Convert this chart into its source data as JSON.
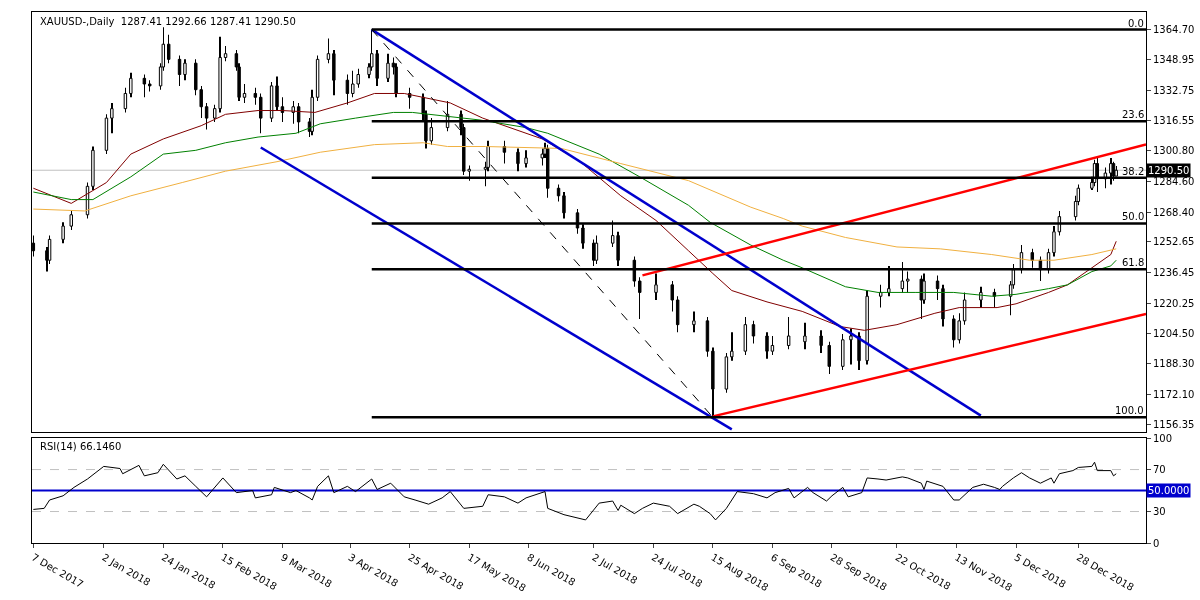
{
  "chart_data": [
    {
      "type": "candlestick",
      "title": "XAUUSD-,Daily  1287.41 1292.66 1287.41 1290.50",
      "color": "#000000",
      "x": [
        "2017-12-07",
        "2017-12-12",
        "2017-12-13",
        "2017-12-18",
        "2017-12-21",
        "2017-12-27",
        "2017-12-29",
        "2018-01-03",
        "2018-01-05",
        "2018-01-10",
        "2018-01-12",
        "2018-01-17",
        "2018-01-19",
        "2018-01-23",
        "2018-01-24",
        "2018-01-26",
        "2018-01-30",
        "2018-02-01",
        "2018-02-05",
        "2018-02-07",
        "2018-02-09",
        "2018-02-12",
        "2018-02-14",
        "2018-02-16",
        "2018-02-20",
        "2018-02-21",
        "2018-02-23",
        "2018-02-27",
        "2018-03-01",
        "2018-03-05",
        "2018-03-07",
        "2018-03-09",
        "2018-03-13",
        "2018-03-15",
        "2018-03-19",
        "2018-03-20",
        "2018-03-22",
        "2018-03-26",
        "2018-03-28",
        "2018-04-02",
        "2018-04-04",
        "2018-04-06",
        "2018-04-10",
        "2018-04-11",
        "2018-04-13",
        "2018-04-17",
        "2018-04-19",
        "2018-04-20",
        "2018-04-25",
        "2018-04-30",
        "2018-05-01",
        "2018-05-03",
        "2018-05-09",
        "2018-05-14",
        "2018-05-15",
        "2018-05-17",
        "2018-05-23",
        "2018-05-24",
        "2018-05-30",
        "2018-06-04",
        "2018-06-07",
        "2018-06-13",
        "2018-06-14",
        "2018-06-15",
        "2018-06-19",
        "2018-06-21",
        "2018-06-26",
        "2018-06-28",
        "2018-07-02",
        "2018-07-03",
        "2018-07-09",
        "2018-07-11",
        "2018-07-17",
        "2018-07-19",
        "2018-07-25",
        "2018-07-31",
        "2018-08-02",
        "2018-08-08",
        "2018-08-13",
        "2018-08-15",
        "2018-08-20",
        "2018-08-22",
        "2018-08-27",
        "2018-08-30",
        "2018-09-04",
        "2018-09-06",
        "2018-09-12",
        "2018-09-18",
        "2018-09-24",
        "2018-09-27",
        "2018-10-02",
        "2018-10-05",
        "2018-10-08",
        "2018-10-11",
        "2018-10-16",
        "2018-10-19",
        "2018-10-24",
        "2018-10-26",
        "2018-10-31",
        "2018-11-01",
        "2018-11-06",
        "2018-11-08",
        "2018-11-12",
        "2018-11-14",
        "2018-11-16",
        "2018-11-22",
        "2018-11-27",
        "2018-12-03",
        "2018-12-04",
        "2018-12-07",
        "2018-12-11",
        "2018-12-14",
        "2018-12-17",
        "2018-12-19",
        "2018-12-21",
        "2018-12-27",
        "2018-12-28",
        "2019-01-02",
        "2019-01-03",
        "2019-01-04",
        "2019-01-07",
        "2019-01-09",
        "2019-01-10",
        "2019-01-11"
      ],
      "ohlc": [
        [
          1252,
          1256,
          1245,
          1248
        ],
        [
          1248,
          1250,
          1237,
          1243
        ],
        [
          1243,
          1256,
          1241,
          1254
        ],
        [
          1254,
          1263,
          1252,
          1261
        ],
        [
          1261,
          1269,
          1259,
          1267
        ],
        [
          1267,
          1284,
          1265,
          1282
        ],
        [
          1282,
          1303,
          1280,
          1301
        ],
        [
          1301,
          1320,
          1299,
          1318
        ],
        [
          1318,
          1326,
          1310,
          1323
        ],
        [
          1323,
          1334,
          1321,
          1331
        ],
        [
          1331,
          1342,
          1329,
          1339
        ],
        [
          1339,
          1341,
          1329,
          1336
        ],
        [
          1336,
          1338,
          1332,
          1335
        ],
        [
          1335,
          1347,
          1333,
          1345
        ],
        [
          1345,
          1366,
          1343,
          1357
        ],
        [
          1357,
          1362,
          1347,
          1349
        ],
        [
          1349,
          1351,
          1335,
          1341
        ],
        [
          1341,
          1349,
          1338,
          1347
        ],
        [
          1347,
          1349,
          1330,
          1333
        ],
        [
          1333,
          1335,
          1318,
          1324
        ],
        [
          1324,
          1326,
          1312,
          1318
        ],
        [
          1318,
          1325,
          1316,
          1323
        ],
        [
          1323,
          1361,
          1321,
          1350
        ],
        [
          1350,
          1356,
          1348,
          1352
        ],
        [
          1352,
          1354,
          1343,
          1345
        ],
        [
          1345,
          1347,
          1327,
          1329
        ],
        [
          1329,
          1336,
          1326,
          1331
        ],
        [
          1331,
          1334,
          1325,
          1329
        ],
        [
          1329,
          1331,
          1310,
          1318
        ],
        [
          1318,
          1337,
          1316,
          1335
        ],
        [
          1335,
          1340,
          1322,
          1324
        ],
        [
          1324,
          1329,
          1316,
          1321
        ],
        [
          1321,
          1327,
          1315,
          1324
        ],
        [
          1324,
          1326,
          1310,
          1316
        ],
        [
          1316,
          1318,
          1308,
          1311
        ],
        [
          1311,
          1333,
          1309,
          1329
        ],
        [
          1329,
          1351,
          1327,
          1349
        ],
        [
          1349,
          1360,
          1347,
          1352
        ],
        [
          1352,
          1354,
          1330,
          1338
        ],
        [
          1338,
          1341,
          1325,
          1331
        ],
        [
          1331,
          1343,
          1329,
          1336
        ],
        [
          1336,
          1344,
          1334,
          1341
        ],
        [
          1341,
          1347,
          1339,
          1345
        ],
        [
          1345,
          1364.7,
          1343,
          1352
        ],
        [
          1352,
          1354,
          1335,
          1339
        ],
        [
          1339,
          1352,
          1337,
          1347
        ],
        [
          1347,
          1350,
          1341,
          1345
        ],
        [
          1345,
          1347,
          1329,
          1331
        ],
        [
          1331,
          1334,
          1323,
          1329
        ],
        [
          1329,
          1331,
          1316,
          1320
        ],
        [
          1320,
          1322,
          1302,
          1306
        ],
        [
          1306,
          1318,
          1304,
          1313
        ],
        [
          1313,
          1327,
          1311,
          1320
        ],
        [
          1320,
          1322,
          1309,
          1313
        ],
        [
          1313,
          1315,
          1288,
          1290
        ],
        [
          1290,
          1293,
          1285,
          1291
        ],
        [
          1291,
          1295,
          1282,
          1292
        ],
        [
          1292,
          1306,
          1290,
          1303
        ],
        [
          1303,
          1306,
          1294,
          1300
        ],
        [
          1300,
          1302,
          1290,
          1294
        ],
        [
          1294,
          1301,
          1292,
          1297
        ],
        [
          1297,
          1302,
          1293,
          1299
        ],
        [
          1299,
          1305,
          1297,
          1302
        ],
        [
          1302,
          1304,
          1276,
          1281
        ],
        [
          1281,
          1283,
          1274,
          1277
        ],
        [
          1277,
          1279,
          1265,
          1268
        ],
        [
          1268,
          1270,
          1257,
          1260
        ],
        [
          1260,
          1262,
          1249,
          1252
        ],
        [
          1252,
          1254,
          1240,
          1243
        ],
        [
          1243,
          1256,
          1241,
          1252
        ],
        [
          1252,
          1264,
          1250,
          1256
        ],
        [
          1256,
          1258,
          1240,
          1243
        ],
        [
          1243,
          1245,
          1229,
          1232
        ],
        [
          1232,
          1234,
          1212,
          1226
        ],
        [
          1226,
          1236,
          1222,
          1230
        ],
        [
          1230,
          1232,
          1216,
          1222
        ],
        [
          1222,
          1224,
          1205,
          1209
        ],
        [
          1209,
          1216,
          1205,
          1211
        ],
        [
          1211,
          1213,
          1192,
          1195
        ],
        [
          1195,
          1197,
          1160.6,
          1175
        ],
        [
          1175,
          1194,
          1173,
          1192
        ],
        [
          1192,
          1205,
          1190,
          1195
        ],
        [
          1195,
          1213,
          1193,
          1209
        ],
        [
          1209,
          1211,
          1199,
          1203
        ],
        [
          1203,
          1205,
          1191,
          1195
        ],
        [
          1195,
          1203,
          1193,
          1198
        ],
        [
          1198,
          1213,
          1196,
          1203
        ],
        [
          1200,
          1210,
          1196,
          1203
        ],
        [
          1203,
          1206,
          1194,
          1198
        ],
        [
          1198,
          1200,
          1183,
          1187
        ],
        [
          1187,
          1204,
          1185,
          1201
        ],
        [
          1201,
          1207,
          1188,
          1203
        ],
        [
          1203,
          1205,
          1185,
          1190
        ],
        [
          1190,
          1227,
          1188,
          1224
        ],
        [
          1224,
          1230,
          1218,
          1226
        ],
        [
          1226,
          1240,
          1224,
          1228
        ],
        [
          1228,
          1242,
          1226,
          1232
        ],
        [
          1232,
          1237,
          1226,
          1233
        ],
        [
          1233,
          1235,
          1212,
          1222
        ],
        [
          1222,
          1236,
          1220,
          1232
        ],
        [
          1232,
          1235,
          1222,
          1228
        ],
        [
          1228,
          1230,
          1208,
          1212
        ],
        [
          1212,
          1214,
          1197,
          1201
        ],
        [
          1201,
          1215,
          1199,
          1211
        ],
        [
          1211,
          1226,
          1209,
          1222
        ],
        [
          1222,
          1229,
          1218,
          1226
        ],
        [
          1226,
          1228,
          1218,
          1224
        ],
        [
          1224,
          1232,
          1214,
          1230
        ],
        [
          1230,
          1241,
          1228,
          1238
        ],
        [
          1238,
          1251,
          1236,
          1247
        ],
        [
          1247,
          1249,
          1239,
          1243
        ],
        [
          1243,
          1245,
          1232,
          1238
        ],
        [
          1238,
          1249,
          1236,
          1247
        ],
        [
          1247,
          1261,
          1245,
          1258
        ],
        [
          1258,
          1269,
          1256,
          1266
        ],
        [
          1266,
          1277,
          1264,
          1274
        ],
        [
          1274,
          1283,
          1272,
          1281
        ],
        [
          1281,
          1287,
          1280,
          1284
        ],
        [
          1284,
          1296,
          1282,
          1294
        ],
        [
          1294,
          1298,
          1279,
          1286
        ],
        [
          1286,
          1292,
          1281,
          1289
        ],
        [
          1289,
          1297,
          1283,
          1294
        ],
        [
          1294,
          1295,
          1285,
          1287.41
        ],
        [
          1287.41,
          1292.66,
          1287.41,
          1290.5
        ]
      ],
      "series": [
        {
          "type": "line",
          "color": "#800000",
          "x": [
            "2017-12-07",
            "2017-12-21",
            "2018-01-03",
            "2018-01-12",
            "2018-01-24",
            "2018-02-07",
            "2018-02-16",
            "2018-02-28",
            "2018-03-09",
            "2018-03-21",
            "2018-04-02",
            "2018-04-12",
            "2018-04-23",
            "2018-05-10",
            "2018-05-22",
            "2018-06-13",
            "2018-06-27",
            "2018-07-12",
            "2018-07-25",
            "2018-08-06",
            "2018-08-15",
            "2018-08-22",
            "2018-09-04",
            "2018-09-17",
            "2018-10-01",
            "2018-10-10",
            "2018-10-22",
            "2018-11-05",
            "2018-11-14",
            "2018-11-28",
            "2018-12-05",
            "2018-12-17",
            "2018-12-24",
            "2019-01-02",
            "2019-01-09",
            "2019-01-11"
          ],
          "values": [
            1281,
            1273,
            1284,
            1299,
            1307,
            1314,
            1320,
            1322,
            1322,
            1321,
            1326,
            1331,
            1331,
            1326,
            1318,
            1307,
            1295,
            1277,
            1264,
            1248,
            1236,
            1227,
            1221,
            1216,
            1208,
            1206,
            1209,
            1215,
            1218,
            1218,
            1220,
            1226,
            1230,
            1239,
            1246,
            1253
          ]
        },
        {
          "type": "line",
          "color": "#008000",
          "x": [
            "2017-12-07",
            "2017-12-21",
            "2017-12-29",
            "2018-01-12",
            "2018-01-24",
            "2018-02-05",
            "2018-02-16",
            "2018-02-28",
            "2018-03-14",
            "2018-03-23",
            "2018-04-05",
            "2018-04-19",
            "2018-04-26",
            "2018-05-21",
            "2018-06-07",
            "2018-06-15",
            "2018-07-04",
            "2018-07-19",
            "2018-08-06",
            "2018-08-14",
            "2018-08-29",
            "2018-09-10",
            "2018-09-17",
            "2018-10-03",
            "2018-10-15",
            "2018-10-29",
            "2018-11-12",
            "2018-11-26",
            "2018-12-05",
            "2018-12-17",
            "2018-12-24",
            "2019-01-02",
            "2019-01-09",
            "2019-01-11"
          ],
          "values": [
            1279,
            1275,
            1275,
            1287,
            1299,
            1301,
            1305,
            1308,
            1310,
            1315,
            1318,
            1321,
            1321,
            1317,
            1313,
            1310,
            1299,
            1287,
            1272,
            1263,
            1251,
            1243,
            1239,
            1229,
            1226,
            1226,
            1226,
            1224,
            1225,
            1228,
            1230,
            1237,
            1240,
            1243
          ]
        },
        {
          "type": "line",
          "color": "#f0b040",
          "x": [
            "2017-12-07",
            "2017-12-26",
            "2018-01-12",
            "2018-01-31",
            "2018-02-16",
            "2018-03-07",
            "2018-03-23",
            "2018-04-12",
            "2018-04-30",
            "2018-05-09",
            "2018-05-23",
            "2018-06-20",
            "2018-07-12",
            "2018-08-06",
            "2018-08-29",
            "2018-09-10",
            "2018-09-17",
            "2018-10-03",
            "2018-10-22",
            "2018-11-07",
            "2018-11-26",
            "2018-12-10",
            "2018-12-19",
            "2019-01-02",
            "2019-01-11"
          ],
          "values": [
            1270,
            1269,
            1277,
            1284,
            1290,
            1295,
            1300,
            1304,
            1305,
            1303,
            1303,
            1302,
            1294,
            1285,
            1271,
            1265,
            1261,
            1255,
            1250,
            1249,
            1246,
            1243,
            1243,
            1246,
            1249
          ]
        },
        {
          "type": "line",
          "color": "#0000cd",
          "x": [
            "2018-04-11",
            "2018-11-22"
          ],
          "values": [
            1364.7,
            1161
          ]
        },
        {
          "type": "line",
          "color": "#0000cd",
          "x": [
            "2018-03-01",
            "2018-08-22"
          ],
          "values": [
            1302.5,
            1153.7
          ]
        },
        {
          "type": "line",
          "color": "#ff0000",
          "x": [
            "2018-07-20",
            "2019-01-22"
          ],
          "values": [
            1235,
            1304.1
          ]
        },
        {
          "type": "line",
          "color": "#ff0000",
          "x": [
            "2018-08-15",
            "2019-01-22"
          ],
          "values": [
            1160.6,
            1214.6
          ]
        },
        {
          "type": "line",
          "color": "#000000",
          "line_style": "dashed",
          "x": [
            "2018-04-11",
            "2018-08-15"
          ],
          "values": [
            1364.7,
            1160.1
          ]
        },
        {
          "type": "line",
          "name": "0.0",
          "color": "#000000",
          "x": [
            "2018-04-11",
            "2019-01-22"
          ],
          "values": [
            1364.7,
            1364.7
          ]
        },
        {
          "type": "line",
          "name": "23.6",
          "color": "#000000",
          "x": [
            "2018-04-11",
            "2019-01-22"
          ],
          "values": [
            1316.4,
            1316.4
          ]
        },
        {
          "type": "line",
          "name": "38.2",
          "color": "#000000",
          "x": [
            "2018-04-11",
            "2019-01-22"
          ],
          "values": [
            1286.5,
            1286.5
          ]
        },
        {
          "type": "line",
          "name": "50.0",
          "color": "#000000",
          "x": [
            "2018-04-11",
            "2019-01-22"
          ],
          "values": [
            1262.4,
            1262.4
          ]
        },
        {
          "type": "line",
          "name": "61.8",
          "color": "#000000",
          "x": [
            "2018-04-11",
            "2019-01-22"
          ],
          "values": [
            1238.3,
            1238.3
          ]
        },
        {
          "type": "line",
          "name": "100.0",
          "color": "#000000",
          "x": [
            "2018-04-11",
            "2019-01-22"
          ],
          "values": [
            1160.1,
            1160.1
          ]
        }
      ],
      "ref_lines": [
        {
          "axis": "y",
          "value": 1290.5,
          "label": "1290.50",
          "color": "#c0c0c0"
        }
      ],
      "xlim": [
        "2017-12-06T12:00",
        "2019-01-22"
      ],
      "ylim": [
        1152.5,
        1374
      ],
      "yticks": [
        {
          "value": 1364.7,
          "label": "1364.70"
        },
        {
          "value": 1348.95,
          "label": "1348.95"
        },
        {
          "value": 1332.75,
          "label": "1332.75"
        },
        {
          "value": 1316.55,
          "label": "1316.55"
        },
        {
          "value": 1300.8,
          "label": "1300.80"
        },
        {
          "value": 1284.6,
          "label": "1284.60"
        },
        {
          "value": 1268.4,
          "label": "1268.40"
        },
        {
          "value": 1252.65,
          "label": "1252.65"
        },
        {
          "value": 1236.45,
          "label": "1236.45"
        },
        {
          "value": 1220.25,
          "label": "1220.25"
        },
        {
          "value": 1204.5,
          "label": "1204.50"
        },
        {
          "value": 1188.3,
          "label": "1188.30"
        },
        {
          "value": 1172.1,
          "label": "1172.10"
        },
        {
          "value": 1156.35,
          "label": "1156.35"
        }
      ],
      "tick_labels": "y"
    },
    {
      "type": "line",
      "title": "RSI(14) 66.1460",
      "color": "#000000",
      "x": [
        "2017-12-07",
        "2017-12-11",
        "2017-12-13",
        "2017-12-18",
        "2017-12-22",
        "2017-12-27",
        "2018-01-02",
        "2018-01-08",
        "2018-01-09",
        "2018-01-15",
        "2018-01-17",
        "2018-01-22",
        "2018-01-24",
        "2018-01-29",
        "2018-02-01",
        "2018-02-05",
        "2018-02-09",
        "2018-02-15",
        "2018-02-20",
        "2018-02-26",
        "2018-02-27",
        "2018-03-05",
        "2018-03-06",
        "2018-03-12",
        "2018-03-14",
        "2018-03-19",
        "2018-03-20",
        "2018-03-22",
        "2018-03-26",
        "2018-03-28",
        "2018-04-02",
        "2018-04-05",
        "2018-04-11",
        "2018-04-13",
        "2018-04-18",
        "2018-04-23",
        "2018-04-27",
        "2018-05-02",
        "2018-05-07",
        "2018-05-10",
        "2018-05-15",
        "2018-05-22",
        "2018-05-24",
        "2018-05-30",
        "2018-06-04",
        "2018-06-07",
        "2018-06-14",
        "2018-06-15",
        "2018-06-21",
        "2018-06-29",
        "2018-07-04",
        "2018-07-09",
        "2018-07-11",
        "2018-07-12",
        "2018-07-17",
        "2018-07-20",
        "2018-07-24",
        "2018-07-30",
        "2018-08-02",
        "2018-08-08",
        "2018-08-10",
        "2018-08-14",
        "2018-08-16",
        "2018-08-20",
        "2018-08-22",
        "2018-08-24",
        "2018-08-30",
        "2018-09-04",
        "2018-09-07",
        "2018-09-12",
        "2018-09-14",
        "2018-09-19",
        "2018-09-21",
        "2018-09-26",
        "2018-09-28",
        "2018-10-02",
        "2018-10-04",
        "2018-10-09",
        "2018-10-11",
        "2018-10-15",
        "2018-10-18",
        "2018-10-24",
        "2018-10-26",
        "2018-10-31",
        "2018-11-01",
        "2018-11-02",
        "2018-11-08",
        "2018-11-12",
        "2018-11-14",
        "2018-11-19",
        "2018-11-23",
        "2018-11-27",
        "2018-11-29",
        "2018-11-30",
        "2018-12-04",
        "2018-12-07",
        "2018-12-10",
        "2018-12-14",
        "2018-12-18",
        "2018-12-19",
        "2018-12-21",
        "2018-12-26",
        "2018-12-28",
        "2019-01-02",
        "2019-01-03",
        "2019-01-04",
        "2019-01-09",
        "2019-01-10",
        "2019-01-11"
      ],
      "values": [
        32,
        33,
        41,
        45,
        53,
        61,
        73,
        71,
        66,
        74,
        64,
        67,
        75,
        61,
        64,
        54,
        44,
        62,
        48,
        50,
        43,
        46,
        53,
        48,
        50,
        43,
        41,
        54,
        64,
        48,
        54,
        49,
        61,
        51,
        57,
        44,
        41,
        37,
        43,
        49,
        33,
        35,
        46,
        44,
        38,
        43,
        49,
        33,
        27,
        22,
        38,
        40,
        31,
        36,
        28,
        33,
        38,
        35,
        28,
        37,
        35,
        28,
        22,
        33,
        41,
        49,
        47,
        43,
        48,
        52,
        43,
        53,
        48,
        40,
        45,
        53,
        44,
        48,
        62,
        61,
        60,
        63,
        62,
        57,
        51,
        59,
        54,
        41,
        41,
        53,
        56,
        53,
        51,
        54,
        62,
        67,
        62,
        57,
        62,
        57,
        66,
        69,
        72,
        73,
        77,
        69,
        69,
        64,
        66
      ],
      "ref_lines": [
        {
          "axis": "y",
          "value": 70,
          "color": "#c0c0c0",
          "line_style": "dashed"
        },
        {
          "axis": "y",
          "value": 30,
          "color": "#c0c0c0",
          "line_style": "dashed"
        },
        {
          "axis": "y",
          "value": 50,
          "label": "50.0000",
          "color": "#0000cd"
        }
      ],
      "xlim": [
        "2017-12-06T12:00",
        "2019-01-22"
      ],
      "ylim": [
        0,
        100
      ],
      "yticks": [
        0,
        30,
        70,
        100
      ],
      "xticks": [
        {
          "value": "2017-12-07",
          "label": "7 Dec 2017"
        },
        {
          "value": "2018-01-02",
          "label": "2 Jan 2018"
        },
        {
          "value": "2018-01-24",
          "label": "24 Jan 2018"
        },
        {
          "value": "2018-02-15",
          "label": "15 Feb 2018"
        },
        {
          "value": "2018-03-09",
          "label": "9 Mar 2018"
        },
        {
          "value": "2018-04-03",
          "label": "3 Apr 2018"
        },
        {
          "value": "2018-04-25",
          "label": "25 Apr 2018"
        },
        {
          "value": "2018-05-17",
          "label": "17 May 2018"
        },
        {
          "value": "2018-06-08",
          "label": "8 Jun 2018"
        },
        {
          "value": "2018-07-02",
          "label": "2 Jul 2018"
        },
        {
          "value": "2018-07-24",
          "label": "24 Jul 2018"
        },
        {
          "value": "2018-08-15",
          "label": "15 Aug 2018"
        },
        {
          "value": "2018-09-06",
          "label": "6 Sep 2018"
        },
        {
          "value": "2018-09-28",
          "label": "28 Sep 2018"
        },
        {
          "value": "2018-10-22",
          "label": "22 Oct 2018"
        },
        {
          "value": "2018-11-13",
          "label": "13 Nov 2018"
        },
        {
          "value": "2018-12-05",
          "label": "5 Dec 2018"
        },
        {
          "value": "2018-12-28",
          "label": "28 Dec 2018"
        }
      ]
    }
  ]
}
